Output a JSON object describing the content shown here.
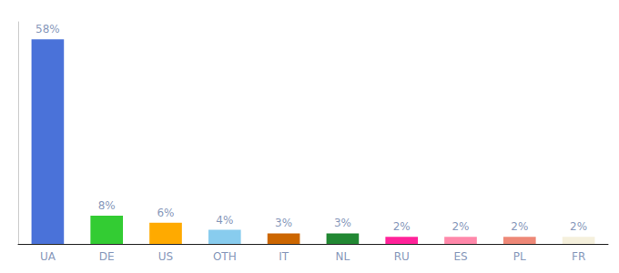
{
  "chart_data": {
    "type": "bar",
    "categories": [
      "UA",
      "DE",
      "US",
      "OTH",
      "IT",
      "NL",
      "RU",
      "ES",
      "PL",
      "FR"
    ],
    "values": [
      58,
      8,
      6,
      4,
      3,
      3,
      2,
      2,
      2,
      2
    ],
    "value_labels": [
      "58%",
      "8%",
      "6%",
      "4%",
      "3%",
      "3%",
      "2%",
      "2%",
      "2%",
      "2%"
    ],
    "colors": [
      "#4a72d9",
      "#33cc33",
      "#ffaa00",
      "#88ccee",
      "#cc6600",
      "#228833",
      "#ff2299",
      "#ff88aa",
      "#ee8877",
      "#f5f0dc"
    ],
    "ylim": [
      0,
      63
    ],
    "grid": false,
    "data_labels": true,
    "tick_labels": "x"
  }
}
